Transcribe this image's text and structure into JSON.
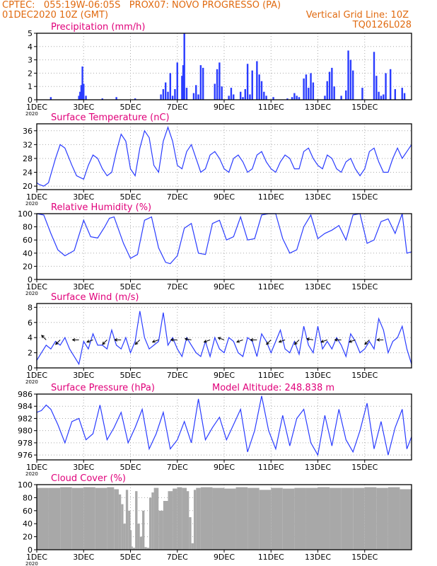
{
  "header": {
    "line1_left": "CPTEC:   055:19W-06:05S   PROX07: NOVO PROGRESSO (PA)",
    "line2_left": "01DEC2020 10Z (GMT)",
    "line2_right": "Vertical Grid Line: 10Z",
    "line3_right": "TQ0126L028"
  },
  "colors": {
    "header_text": "#e06a10",
    "panel_title": "#e0007a",
    "line": "#2a3cff",
    "bar": "#2a3cff",
    "cloud_fill": "#a8a8a8",
    "grid": "#aaaaaa",
    "axis": "#000000"
  },
  "x_axis": {
    "ticks": [
      "1DEC",
      "3DEC",
      "5DEC",
      "7DEC",
      "9DEC",
      "11DEC",
      "13DEC",
      "15DEC"
    ],
    "year_label": "2020"
  },
  "chart_data": [
    {
      "type": "bar",
      "title": "Precipitation (mm/h)",
      "ylim": [
        0,
        5
      ],
      "yticks": [
        0,
        1,
        2,
        3,
        4,
        5
      ],
      "x_unit": "days since 01DEC2020 10Z",
      "x": [
        0.6,
        1.8,
        1.85,
        1.9,
        1.95,
        2.0,
        2.1,
        2.8,
        3.4,
        4.2,
        5.3,
        5.4,
        5.5,
        5.6,
        5.7,
        5.8,
        5.9,
        6.0,
        6.2,
        6.25,
        6.3,
        6.4,
        6.7,
        6.8,
        6.9,
        7.0,
        7.1,
        7.6,
        7.7,
        7.8,
        7.9,
        8.2,
        8.3,
        8.4,
        8.7,
        8.8,
        8.9,
        9.0,
        9.1,
        9.2,
        9.4,
        9.5,
        9.6,
        9.7,
        9.8,
        10.1,
        10.7,
        10.9,
        11.0,
        11.1,
        11.2,
        11.4,
        11.5,
        11.6,
        11.7,
        11.8,
        12.3,
        12.4,
        12.5,
        12.6,
        12.7,
        13.0,
        13.2,
        13.3,
        13.4,
        13.5,
        13.9,
        14.4,
        14.5,
        14.6,
        14.7,
        14.8,
        14.9,
        15.1,
        15.3,
        15.6,
        15.7
      ],
      "values": [
        0.2,
        0.3,
        0.6,
        1.1,
        2.5,
        1.2,
        0.3,
        0.1,
        0.2,
        0.1,
        0.4,
        0.8,
        1.3,
        0.6,
        2.0,
        0.3,
        0.8,
        2.8,
        1.8,
        2.6,
        5.0,
        0.9,
        0.5,
        1.1,
        0.4,
        2.6,
        2.4,
        1.2,
        2.3,
        2.8,
        1.0,
        0.3,
        0.9,
        0.4,
        0.6,
        0.2,
        0.8,
        2.7,
        0.4,
        2.2,
        2.9,
        1.9,
        1.4,
        0.6,
        0.3,
        0.2,
        0.1,
        0.2,
        0.5,
        0.3,
        0.2,
        1.6,
        1.9,
        0.9,
        2.0,
        1.3,
        0.3,
        1.4,
        2.1,
        2.4,
        1.0,
        0.3,
        0.7,
        3.7,
        3.0,
        2.2,
        0.9,
        3.6,
        1.8,
        0.6,
        0.3,
        0.4,
        2.0,
        2.3,
        0.8,
        0.9,
        0.5
      ]
    },
    {
      "type": "line",
      "title": "Surface Temperature (nC)",
      "ylim": [
        19,
        38
      ],
      "yticks": [
        20,
        24,
        28,
        32,
        36
      ],
      "x_unit": "days since 01DEC2020 10Z",
      "x": [
        0,
        0.1,
        0.3,
        0.5,
        0.8,
        1.0,
        1.2,
        1.5,
        1.7,
        2.0,
        2.2,
        2.4,
        2.6,
        2.8,
        3.0,
        3.2,
        3.4,
        3.6,
        3.8,
        4.0,
        4.2,
        4.4,
        4.6,
        4.8,
        5.0,
        5.2,
        5.4,
        5.6,
        5.8,
        6.0,
        6.2,
        6.4,
        6.6,
        6.8,
        7.0,
        7.2,
        7.4,
        7.6,
        7.8,
        8.0,
        8.2,
        8.4,
        8.6,
        8.8,
        9.0,
        9.2,
        9.4,
        9.6,
        9.8,
        10.0,
        10.2,
        10.4,
        10.6,
        10.8,
        11.0,
        11.2,
        11.4,
        11.6,
        11.8,
        12.0,
        12.2,
        12.4,
        12.6,
        12.8,
        13.0,
        13.2,
        13.4,
        13.6,
        13.8,
        14.0,
        14.2,
        14.4,
        14.6,
        14.8,
        15.0,
        15.2,
        15.4,
        15.6,
        15.8,
        16.0
      ],
      "values": [
        21,
        20.5,
        20,
        21,
        28,
        32,
        31,
        26,
        23,
        22,
        26,
        29,
        28,
        25,
        23,
        24,
        30,
        35,
        33,
        25,
        23,
        31,
        36,
        34,
        26,
        24,
        33,
        37,
        33,
        26,
        25,
        30,
        32,
        28,
        24,
        25,
        29,
        30,
        28,
        25,
        24,
        28,
        29,
        27,
        24,
        25,
        29,
        30,
        27,
        25,
        24,
        27,
        29,
        28,
        25,
        25,
        30,
        31,
        28,
        26,
        25,
        29,
        28,
        25,
        24,
        27,
        28,
        25,
        23,
        25,
        30,
        31,
        27,
        24,
        24,
        28,
        31,
        28,
        30,
        32
      ]
    },
    {
      "type": "line",
      "title": "Relative Humidity (%)",
      "ylim": [
        0,
        100
      ],
      "yticks": [
        0,
        20,
        40,
        60,
        80,
        100
      ],
      "x_unit": "days since 01DEC2020 10Z",
      "x": [
        0,
        0.3,
        0.6,
        0.9,
        1.2,
        1.6,
        2.0,
        2.3,
        2.6,
        2.9,
        3.1,
        3.3,
        3.7,
        4.0,
        4.3,
        4.6,
        4.9,
        5.2,
        5.5,
        5.7,
        6.0,
        6.3,
        6.6,
        6.9,
        7.2,
        7.5,
        7.8,
        8.1,
        8.4,
        8.7,
        9.0,
        9.3,
        9.6,
        9.9,
        10.2,
        10.5,
        10.8,
        11.1,
        11.4,
        11.7,
        12.0,
        12.3,
        12.6,
        12.9,
        13.2,
        13.5,
        13.8,
        14.1,
        14.4,
        14.7,
        15.0,
        15.3,
        15.6,
        15.8,
        16.0
      ],
      "values": [
        100,
        98,
        70,
        45,
        36,
        44,
        90,
        65,
        63,
        80,
        93,
        95,
        55,
        32,
        38,
        90,
        95,
        48,
        26,
        24,
        36,
        78,
        85,
        40,
        38,
        85,
        90,
        60,
        65,
        95,
        60,
        62,
        98,
        100,
        100,
        62,
        40,
        45,
        80,
        98,
        62,
        70,
        75,
        82,
        60,
        98,
        100,
        55,
        60,
        88,
        92,
        70,
        100,
        40,
        42
      ]
    },
    {
      "type": "line",
      "title": "Surface Wind (m/s)",
      "ylim": [
        0,
        8.5
      ],
      "yticks": [
        0,
        2,
        4,
        6,
        8
      ],
      "x_unit": "days since 01DEC2020 10Z",
      "x": [
        0,
        0.2,
        0.4,
        0.6,
        0.8,
        1.0,
        1.2,
        1.4,
        1.6,
        1.8,
        2.0,
        2.2,
        2.4,
        2.6,
        2.8,
        3.0,
        3.2,
        3.4,
        3.6,
        3.8,
        4.0,
        4.2,
        4.4,
        4.6,
        4.8,
        5.0,
        5.2,
        5.4,
        5.6,
        5.8,
        6.0,
        6.2,
        6.4,
        6.6,
        6.8,
        7.0,
        7.2,
        7.4,
        7.6,
        7.8,
        8.0,
        8.2,
        8.4,
        8.6,
        8.8,
        9.0,
        9.2,
        9.4,
        9.6,
        9.8,
        10.0,
        10.2,
        10.4,
        10.6,
        10.8,
        11.0,
        11.2,
        11.4,
        11.6,
        11.8,
        12.0,
        12.2,
        12.4,
        12.6,
        12.8,
        13.0,
        13.2,
        13.4,
        13.6,
        13.8,
        14.0,
        14.2,
        14.4,
        14.6,
        14.8,
        15.0,
        15.2,
        15.4,
        15.6,
        15.8,
        16.0
      ],
      "values": [
        1,
        2,
        3,
        2.5,
        3.5,
        3,
        4,
        2.5,
        1.5,
        0.5,
        3.5,
        2.5,
        4.5,
        3,
        3,
        2.5,
        5,
        3,
        2.5,
        4,
        2,
        3.5,
        7.5,
        4,
        2.5,
        3,
        3.5,
        7.3,
        3,
        4,
        2.5,
        1.5,
        4,
        3,
        2,
        1.5,
        3.5,
        1.5,
        4,
        2.5,
        2,
        4,
        3.5,
        2,
        1.5,
        4,
        3.5,
        1.5,
        4.5,
        3.5,
        2,
        3.5,
        5,
        2.5,
        2,
        3.5,
        1.8,
        5.5,
        3,
        2,
        5.5,
        2.5,
        3.5,
        2.5,
        4,
        3,
        1.5,
        4.5,
        3.5,
        2,
        2.5,
        3.5,
        2.5,
        6.5,
        5,
        2,
        3.5,
        4,
        5.5,
        2.5,
        0.5
      ],
      "arrows": [
        {
          "x": 0.4,
          "dir_deg": 135
        },
        {
          "x": 1.0,
          "dir_deg": 225
        },
        {
          "x": 1.8,
          "dir_deg": 180
        },
        {
          "x": 2.4,
          "dir_deg": 200
        },
        {
          "x": 3.0,
          "dir_deg": 225
        },
        {
          "x": 3.6,
          "dir_deg": 180
        },
        {
          "x": 4.4,
          "dir_deg": 225
        },
        {
          "x": 5.2,
          "dir_deg": 200
        },
        {
          "x": 6.0,
          "dir_deg": 180
        },
        {
          "x": 6.6,
          "dir_deg": 170
        },
        {
          "x": 7.4,
          "dir_deg": 200
        },
        {
          "x": 8.0,
          "dir_deg": 160
        },
        {
          "x": 8.8,
          "dir_deg": 200
        },
        {
          "x": 9.4,
          "dir_deg": 180
        },
        {
          "x": 10.0,
          "dir_deg": 225
        },
        {
          "x": 10.6,
          "dir_deg": 200
        },
        {
          "x": 11.2,
          "dir_deg": 225
        },
        {
          "x": 11.8,
          "dir_deg": 170
        },
        {
          "x": 12.4,
          "dir_deg": 200
        },
        {
          "x": 13.0,
          "dir_deg": 180
        },
        {
          "x": 13.6,
          "dir_deg": 200
        },
        {
          "x": 14.2,
          "dir_deg": 225
        },
        {
          "x": 14.8,
          "dir_deg": 180
        }
      ]
    },
    {
      "type": "line",
      "title": "Surface Pressure (hPa)",
      "subtitle": "Model Altitude: 248.838  m",
      "ylim": [
        975.2,
        986
      ],
      "yticks": [
        976,
        978,
        980,
        982,
        984,
        986
      ],
      "x_unit": "days since 01DEC2020 10Z",
      "x": [
        0,
        0.2,
        0.4,
        0.6,
        0.9,
        1.2,
        1.5,
        1.8,
        2.1,
        2.4,
        2.7,
        3.0,
        3.3,
        3.6,
        3.9,
        4.2,
        4.5,
        4.8,
        5.1,
        5.4,
        5.7,
        6.0,
        6.3,
        6.6,
        6.9,
        7.2,
        7.5,
        7.8,
        8.1,
        8.4,
        8.7,
        9.0,
        9.3,
        9.6,
        9.9,
        10.2,
        10.5,
        10.8,
        11.1,
        11.4,
        11.7,
        12.0,
        12.3,
        12.6,
        12.9,
        13.2,
        13.5,
        13.8,
        14.1,
        14.4,
        14.7,
        15.0,
        15.3,
        15.6,
        15.8,
        16.0
      ],
      "values": [
        983,
        983.3,
        984.2,
        983.5,
        981,
        978,
        981.5,
        982,
        978.5,
        979.5,
        984.2,
        978.5,
        980.5,
        983,
        978,
        980.5,
        983.5,
        977,
        979.5,
        983,
        977,
        978.5,
        981.5,
        978,
        985.2,
        978.5,
        980.5,
        982.2,
        978.5,
        981,
        983.5,
        976.5,
        980,
        985.7,
        980,
        977,
        982.5,
        977.5,
        982,
        983.5,
        978,
        976,
        982.5,
        977.5,
        983.5,
        978.5,
        976.5,
        980,
        984.5,
        977,
        981.5,
        976,
        980.5,
        983.5,
        977,
        979
      ]
    },
    {
      "type": "area",
      "title": "Cloud Cover (%)",
      "ylim": [
        0,
        100
      ],
      "yticks": [
        0,
        20,
        40,
        60,
        80,
        100
      ],
      "x_unit": "days since 01DEC2020 10Z",
      "x": [
        0,
        0.5,
        1.0,
        1.5,
        2.0,
        2.5,
        3.0,
        3.3,
        3.5,
        3.6,
        3.7,
        3.8,
        3.9,
        4.0,
        4.05,
        4.1,
        4.2,
        4.3,
        4.4,
        4.5,
        4.6,
        4.7,
        4.8,
        4.9,
        5.0,
        5.2,
        5.4,
        5.6,
        5.8,
        6.0,
        6.2,
        6.4,
        6.5,
        6.6,
        6.7,
        6.8,
        7.0,
        7.5,
        8.0,
        8.5,
        9.0,
        9.5,
        10.0,
        10.5,
        11.0,
        11.5,
        12.0,
        12.5,
        13.0,
        13.5,
        14.0,
        14.5,
        15.0,
        15.5,
        16.0
      ],
      "values": [
        95,
        95,
        96,
        95,
        96,
        95,
        96,
        93,
        85,
        70,
        40,
        92,
        60,
        30,
        5,
        3,
        90,
        40,
        20,
        60,
        4,
        3,
        80,
        88,
        95,
        60,
        75,
        90,
        94,
        96,
        95,
        90,
        50,
        10,
        92,
        95,
        96,
        95,
        94,
        96,
        95,
        92,
        95,
        94,
        95,
        95,
        96,
        95,
        95,
        95,
        96,
        95,
        96,
        93,
        92
      ]
    }
  ]
}
